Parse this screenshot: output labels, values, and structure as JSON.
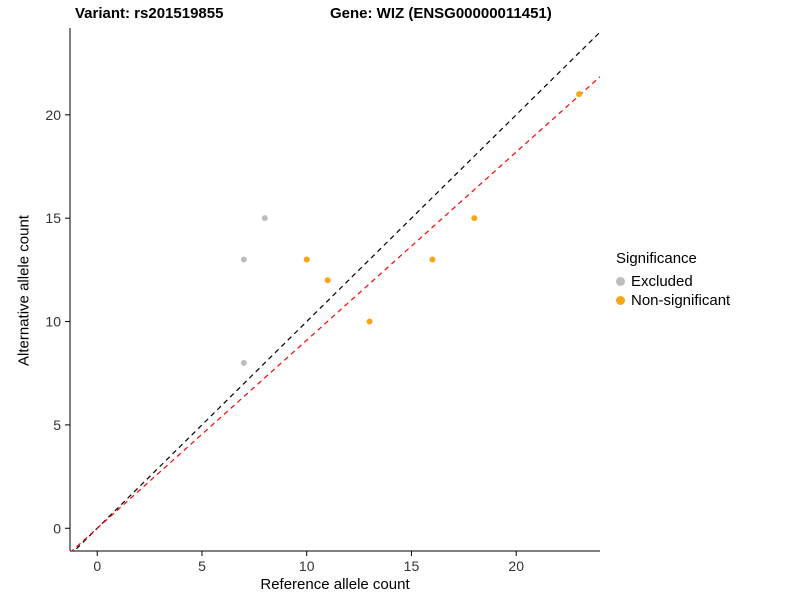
{
  "titles": {
    "left": "Variant: rs201519855",
    "right": "Gene: WIZ (ENSG00000011451)"
  },
  "legend": {
    "title": "Significance",
    "items": [
      {
        "label": "Excluded",
        "color": "#bdbdbd"
      },
      {
        "label": "Non-significant",
        "color": "#f8a51b"
      }
    ]
  },
  "chart_data": {
    "type": "scatter",
    "title": "Variant: rs201519855 / Gene: WIZ (ENSG00000011451)",
    "xlabel": "Reference allele count",
    "ylabel": "Alternative allele count",
    "xlim": [
      -1.3,
      24.0
    ],
    "ylim": [
      -1.1,
      24.2
    ],
    "xticks": [
      0,
      5,
      10,
      15,
      20
    ],
    "yticks": [
      0,
      5,
      10,
      15,
      20
    ],
    "grid": false,
    "legend_position": "right",
    "series": [
      {
        "name": "Excluded",
        "color": "#bdbdbd",
        "points": [
          [
            7,
            13
          ],
          [
            8,
            15
          ],
          [
            7,
            8
          ]
        ]
      },
      {
        "name": "Non-significant",
        "color": "#f8a51b",
        "points": [
          [
            10,
            13
          ],
          [
            11,
            12
          ],
          [
            13,
            10
          ],
          [
            16,
            13
          ],
          [
            18,
            15
          ],
          [
            23,
            21
          ]
        ]
      }
    ],
    "lines": [
      {
        "name": "identity-line",
        "color": "#000000",
        "dash": "5,4",
        "slope": 1.0,
        "intercept": 0
      },
      {
        "name": "fit-line",
        "color": "#ff0000",
        "dash": "5,4",
        "slope": 0.91,
        "intercept": 0
      }
    ]
  }
}
